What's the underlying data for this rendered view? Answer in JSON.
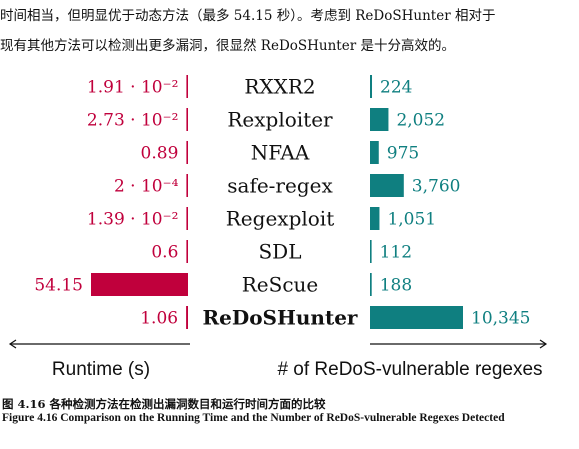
{
  "paragraph": {
    "line1": "时间相当，但明显优于动态方法（最多 54.15 秒）。考虑到 ReDoSHunter 相对于",
    "line2": "现有其他方法可以检测出更多漏洞，很显然 ReDoSHunter 是十分高效的。"
  },
  "chart_data": {
    "type": "bar",
    "categories": [
      "RXXR2",
      "Rexploiter",
      "NFAA",
      "safe-regex",
      "Regexploit",
      "SDL",
      "ReScue",
      "ReDoSHunter"
    ],
    "highlight_category": "ReDoSHunter",
    "series": [
      {
        "name": "",
        "values": [
          0.0191,
          0.0273,
          0.89,
          0.0002,
          0.0139,
          0.6,
          54.15,
          1.06
        ],
        "labels": [
          "1.91 · 10⁻²",
          "2.73 · 10⁻²",
          "0.89",
          "2 · 10⁻⁴",
          "1.39 · 10⁻²",
          "0.6",
          "54.15",
          "1.06"
        ],
        "color": "#c0003c",
        "direction": "left"
      },
      {
        "name": "",
        "values": [
          224,
          2052,
          975,
          3760,
          1051,
          112,
          188,
          10345
        ],
        "labels": [
          "224",
          "2,052",
          "975",
          "3,760",
          "1,051",
          "112",
          "188",
          "10,345"
        ],
        "color": "#0f7f80",
        "direction": "right"
      }
    ],
    "xlabel_left": "Runtime (s)",
    "xlabel_right": "# of ReDoS-vulnerable regexes",
    "colors": {
      "runtime": "#c0003c",
      "regex": "#0f7f80"
    }
  },
  "caption": {
    "cn": "图 4.16 各种检测方法在检测出漏洞数目和运行时间方面的比较",
    "en": "Figure 4.16 Comparison on the Running Time and the Number of ReDoS-vulnerable Regexes Detected"
  }
}
